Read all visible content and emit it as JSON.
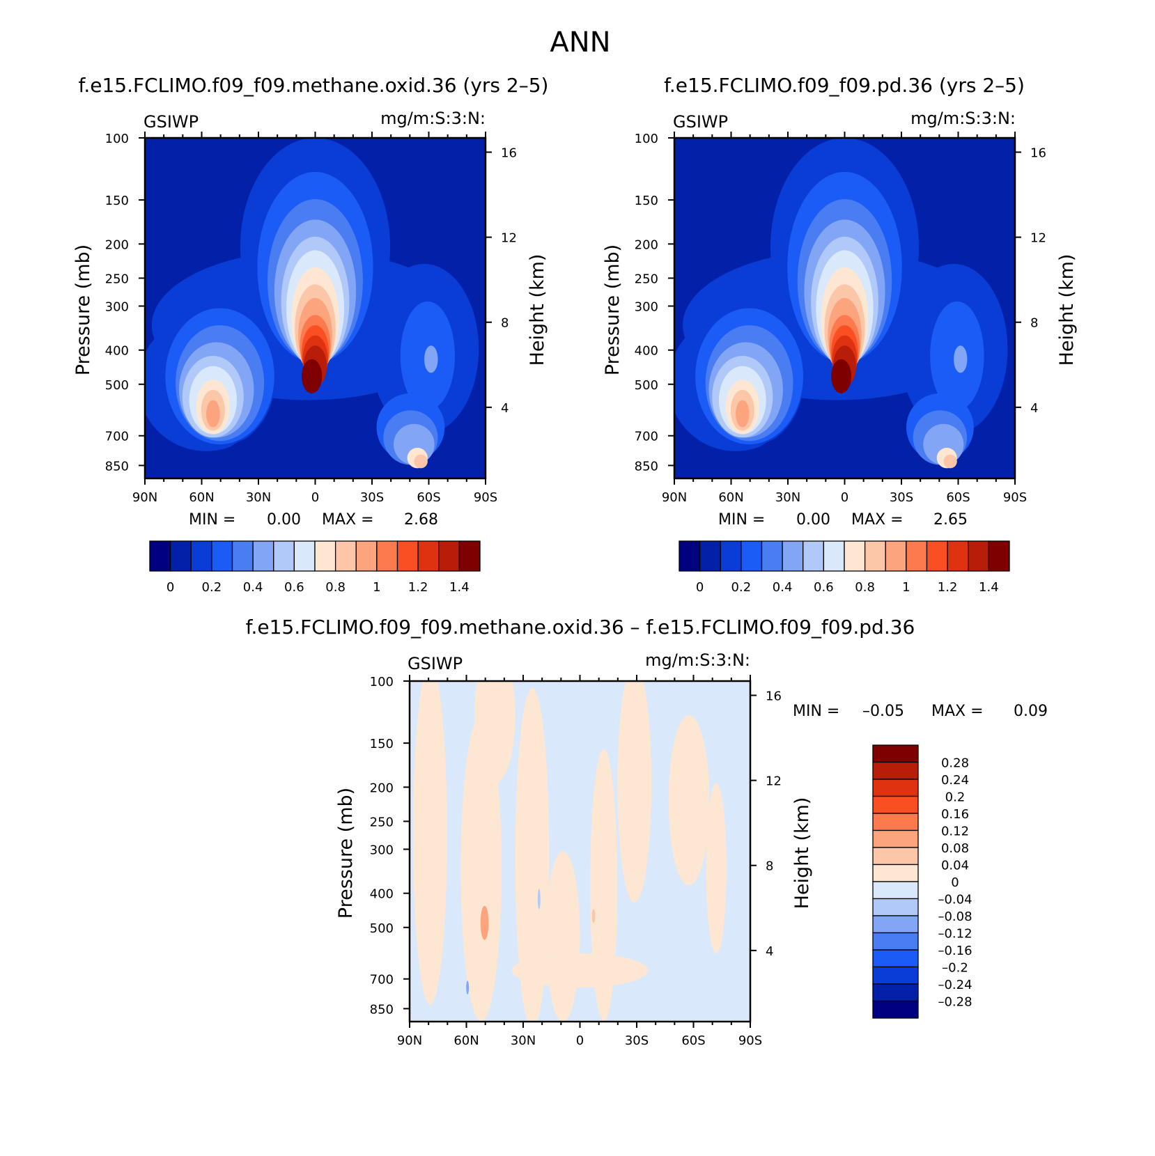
{
  "title": "ANN",
  "colors": {
    "seq": [
      "#000080",
      "#0321a8",
      "#0a3cd6",
      "#1a5cf5",
      "#4a7df2",
      "#82a6f5",
      "#b0c9f8",
      "#d9e9fb",
      "#fde7d2",
      "#fcc6a8",
      "#fca47d",
      "#fc7a4d",
      "#f94f22",
      "#de3210",
      "#b71d08",
      "#7f0000"
    ],
    "diff": [
      "#000080",
      "#0321a8",
      "#0a3cd6",
      "#1a5cf5",
      "#4a7df2",
      "#82a6f5",
      "#b0c9f8",
      "#d9e9fb",
      "#fde7d2",
      "#fcc6a8",
      "#fca47d",
      "#fc7a4d",
      "#f94f22",
      "#de3210",
      "#b71d08",
      "#7f0000"
    ]
  },
  "chart_data": [
    {
      "id": "panel1",
      "type": "heatmap",
      "title": "f.e15.FCLIMO.f09_f09.methane.oxid.36 (yrs 2–5)",
      "left_label": "GSIWP",
      "units": "mg/m:S:3:N:",
      "ylabel": "Pressure (mb)",
      "ylabel2": "Height (km)",
      "xlabel": "",
      "xticks": [
        "90N",
        "60N",
        "30N",
        "0",
        "30S",
        "60S",
        "90S"
      ],
      "yticks": [
        100,
        150,
        200,
        250,
        300,
        400,
        500,
        700,
        850
      ],
      "ylim": [
        100,
        925
      ],
      "y2ticks": [
        16,
        12,
        8,
        4
      ],
      "min_label": "MIN =",
      "min_value": "0.00",
      "max_label": "MAX =",
      "max_value": "2.68",
      "min": 0.0,
      "max": 2.68,
      "colorbar_ticks": [
        "0",
        "0.2",
        "0.4",
        "0.6",
        "0.8",
        "1",
        "1.2",
        "1.4"
      ],
      "scale": 1.0
    },
    {
      "id": "panel2",
      "type": "heatmap",
      "title": "f.e15.FCLIMO.f09_f09.pd.36 (yrs 2–5)",
      "left_label": "GSIWP",
      "units": "mg/m:S:3:N:",
      "ylabel": "Pressure (mb)",
      "ylabel2": "Height (km)",
      "xticks": [
        "90N",
        "60N",
        "30N",
        "0",
        "30S",
        "60S",
        "90S"
      ],
      "yticks": [
        100,
        150,
        200,
        250,
        300,
        400,
        500,
        700,
        850
      ],
      "ylim": [
        100,
        925
      ],
      "y2ticks": [
        16,
        12,
        8,
        4
      ],
      "min_label": "MIN =",
      "min_value": "0.00",
      "max_label": "MAX =",
      "max_value": "2.65",
      "min": 0.0,
      "max": 2.65,
      "colorbar_ticks": [
        "0",
        "0.2",
        "0.4",
        "0.6",
        "0.8",
        "1",
        "1.2",
        "1.4"
      ],
      "scale": 0.99
    },
    {
      "id": "panel3",
      "type": "heatmap",
      "title": "f.e15.FCLIMO.f09_f09.methane.oxid.36 – f.e15.FCLIMO.f09_f09.pd.36",
      "left_label": "GSIWP",
      "units": "mg/m:S:3:N:",
      "ylabel": "Pressure (mb)",
      "ylabel2": "Height (km)",
      "xticks": [
        "90N",
        "60N",
        "30N",
        "0",
        "30S",
        "60S",
        "90S"
      ],
      "yticks": [
        100,
        150,
        200,
        250,
        300,
        400,
        500,
        700,
        850
      ],
      "ylim": [
        100,
        925
      ],
      "y2ticks": [
        16,
        12,
        8,
        4
      ],
      "min_label": "MIN =",
      "min_value": "–0.05",
      "max_label": "MAX =",
      "max_value": "0.09",
      "min": -0.05,
      "max": 0.09,
      "colorbar_ticks": [
        "0.28",
        "0.24",
        "0.2",
        "0.16",
        "0.12",
        "0.08",
        "0.04",
        "0",
        "–0.04",
        "–0.08",
        "–0.12",
        "–0.16",
        "–0.2",
        "–0.24",
        "–0.28"
      ]
    }
  ]
}
